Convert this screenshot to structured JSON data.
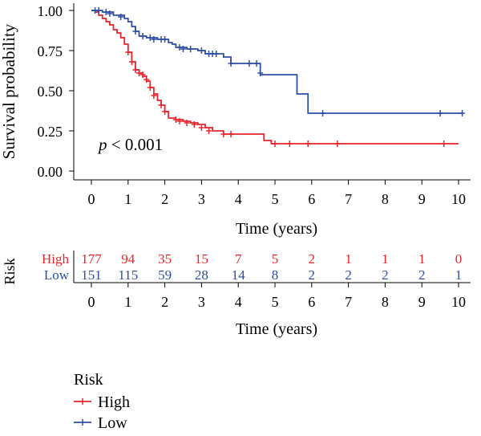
{
  "chart_data": {
    "type": "line",
    "subtype": "kaplan-meier",
    "xlabel": "Time (years)",
    "ylabel": "Survival probability",
    "xlim": [
      0,
      10
    ],
    "ylim": [
      0,
      1
    ],
    "x_ticks": [
      0,
      1,
      2,
      3,
      4,
      5,
      6,
      7,
      8,
      9,
      10
    ],
    "y_ticks": [
      "0.00",
      "0.25",
      "0.50",
      "0.75",
      "1.00"
    ],
    "grid": false,
    "annotation": {
      "italic": "p",
      "text": " < 0.001"
    },
    "series": [
      {
        "name": "High",
        "color": "#e8252b",
        "steps": [
          [
            0,
            1.0
          ],
          [
            0.1,
            0.99
          ],
          [
            0.2,
            0.97
          ],
          [
            0.3,
            0.95
          ],
          [
            0.4,
            0.93
          ],
          [
            0.5,
            0.91
          ],
          [
            0.6,
            0.88
          ],
          [
            0.7,
            0.86
          ],
          [
            0.8,
            0.83
          ],
          [
            0.9,
            0.79
          ],
          [
            1.0,
            0.74
          ],
          [
            1.1,
            0.68
          ],
          [
            1.2,
            0.63
          ],
          [
            1.3,
            0.61
          ],
          [
            1.4,
            0.59
          ],
          [
            1.5,
            0.56
          ],
          [
            1.6,
            0.52
          ],
          [
            1.7,
            0.48
          ],
          [
            1.8,
            0.44
          ],
          [
            1.9,
            0.41
          ],
          [
            2.0,
            0.37
          ],
          [
            2.1,
            0.33
          ],
          [
            2.3,
            0.32
          ],
          [
            2.5,
            0.31
          ],
          [
            2.7,
            0.3
          ],
          [
            2.9,
            0.29
          ],
          [
            3.1,
            0.27
          ],
          [
            3.3,
            0.25
          ],
          [
            3.6,
            0.23
          ],
          [
            4.7,
            0.19
          ],
          [
            4.9,
            0.17
          ],
          [
            10.0,
            0.17
          ]
        ],
        "end_x": 9.6,
        "censor": [
          [
            1.0,
            0.74
          ],
          [
            1.1,
            0.68
          ],
          [
            1.2,
            0.63
          ],
          [
            1.3,
            0.61
          ],
          [
            1.4,
            0.6
          ],
          [
            1.5,
            0.57
          ],
          [
            1.6,
            0.52
          ],
          [
            1.7,
            0.47
          ],
          [
            1.9,
            0.41
          ],
          [
            2.0,
            0.37
          ],
          [
            2.3,
            0.32
          ],
          [
            2.4,
            0.31
          ],
          [
            2.6,
            0.3
          ],
          [
            2.8,
            0.29
          ],
          [
            3.0,
            0.27
          ],
          [
            3.2,
            0.25
          ],
          [
            3.6,
            0.23
          ],
          [
            3.8,
            0.23
          ],
          [
            5.0,
            0.17
          ],
          [
            5.4,
            0.17
          ],
          [
            5.9,
            0.17
          ],
          [
            6.7,
            0.17
          ],
          [
            9.6,
            0.17
          ]
        ]
      },
      {
        "name": "Low",
        "color": "#2e4fa3",
        "steps": [
          [
            0,
            1.0
          ],
          [
            0.3,
            0.99
          ],
          [
            0.6,
            0.97
          ],
          [
            0.9,
            0.95
          ],
          [
            1.0,
            0.93
          ],
          [
            1.1,
            0.9
          ],
          [
            1.2,
            0.87
          ],
          [
            1.3,
            0.84
          ],
          [
            1.5,
            0.83
          ],
          [
            1.8,
            0.82
          ],
          [
            2.1,
            0.8
          ],
          [
            2.2,
            0.79
          ],
          [
            2.3,
            0.77
          ],
          [
            2.6,
            0.76
          ],
          [
            2.9,
            0.75
          ],
          [
            3.1,
            0.73
          ],
          [
            3.6,
            0.71
          ],
          [
            3.8,
            0.67
          ],
          [
            4.6,
            0.6
          ],
          [
            5.6,
            0.48
          ],
          [
            5.9,
            0.36
          ],
          [
            10.1,
            0.36
          ]
        ],
        "end_x": 10.1,
        "censor": [
          [
            0.1,
            1.0
          ],
          [
            0.2,
            1.0
          ],
          [
            0.4,
            0.99
          ],
          [
            0.5,
            0.98
          ],
          [
            0.8,
            0.96
          ],
          [
            1.2,
            0.87
          ],
          [
            1.4,
            0.84
          ],
          [
            1.6,
            0.83
          ],
          [
            1.7,
            0.82
          ],
          [
            1.9,
            0.82
          ],
          [
            2.0,
            0.82
          ],
          [
            2.4,
            0.77
          ],
          [
            2.5,
            0.76
          ],
          [
            2.7,
            0.76
          ],
          [
            3.0,
            0.75
          ],
          [
            3.2,
            0.73
          ],
          [
            3.3,
            0.73
          ],
          [
            3.4,
            0.73
          ],
          [
            3.8,
            0.67
          ],
          [
            4.3,
            0.67
          ],
          [
            4.5,
            0.67
          ],
          [
            4.6,
            0.61
          ],
          [
            6.3,
            0.36
          ],
          [
            9.5,
            0.36
          ],
          [
            10.1,
            0.36
          ]
        ]
      }
    ]
  },
  "risk_table": {
    "title": "Risk",
    "rows": [
      {
        "label": "High",
        "color": "#e8252b",
        "values": [
          "177",
          "94",
          "35",
          "15",
          "7",
          "5",
          "2",
          "1",
          "1",
          "1",
          "0"
        ]
      },
      {
        "label": "Low",
        "color": "#2e4fa3",
        "values": [
          "151",
          "115",
          "59",
          "28",
          "14",
          "8",
          "2",
          "2",
          "2",
          "2",
          "1"
        ]
      }
    ],
    "x_ticks": [
      0,
      1,
      2,
      3,
      4,
      5,
      6,
      7,
      8,
      9,
      10
    ],
    "xlabel": "Time (years)"
  },
  "legend": {
    "title": "Risk",
    "items": [
      {
        "label": "High",
        "color": "#e8252b"
      },
      {
        "label": "Low",
        "color": "#2e4fa3"
      }
    ]
  }
}
